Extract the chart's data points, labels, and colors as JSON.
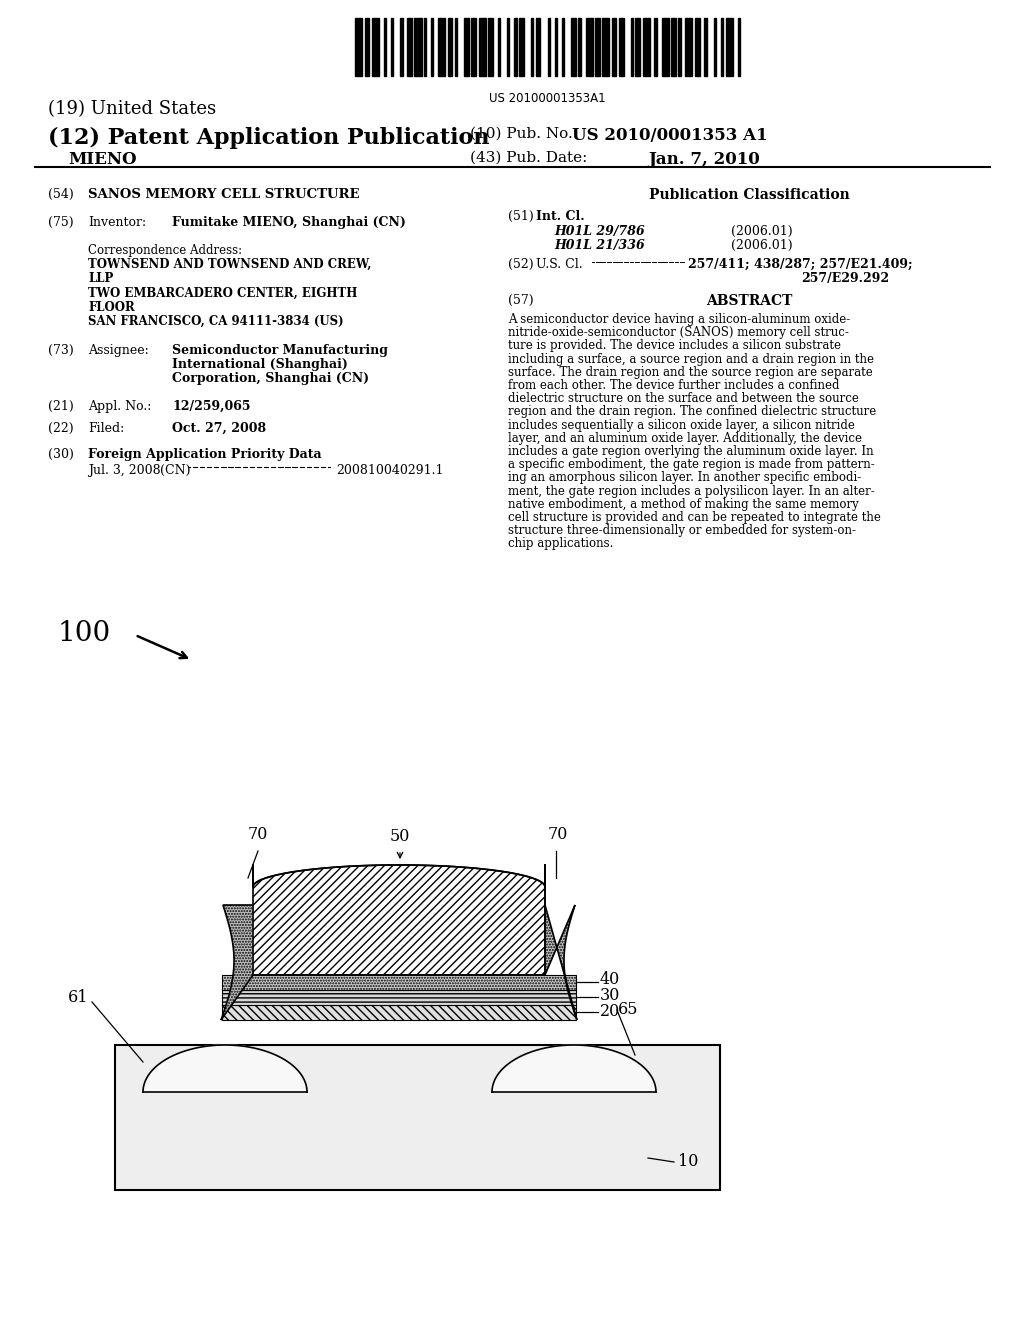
{
  "bg_color": "#ffffff",
  "barcode_text": "US 20100001353A1",
  "line19": "(19) United States",
  "line12": "(12) Patent Application Publication",
  "pub_no_label": "(10) Pub. No.:",
  "pub_no": "US 2010/0001353 A1",
  "inventor_name": "MIENO",
  "pub_date_label": "(43) Pub. Date:",
  "pub_date": "Jan. 7, 2010",
  "title_num": "(54)",
  "title": "SANOS MEMORY CELL STRUCTURE",
  "pub_class_header": "Publication Classification",
  "int_cl_num": "(51)",
  "int_cl_label": "Int. Cl.",
  "int_cl_1": "H01L 29/786",
  "int_cl_1_year": "(2006.01)",
  "int_cl_2": "H01L 21/336",
  "int_cl_2_year": "(2006.01)",
  "us_cl_num": "(52)",
  "us_cl_label": "U.S. Cl.",
  "us_cl_dots": ".............",
  "us_cl_val1": "257/411; 438/287; 257/E21.409;",
  "us_cl_val2": "257/E29.292",
  "abstract_num": "(57)",
  "abstract_label": "ABSTRACT",
  "abstract_lines": [
    "A semiconductor device having a silicon-aluminum oxide-",
    "nitride-oxide-semiconductor (SANOS) memory cell struc-",
    "ture is provided. The device includes a silicon substrate",
    "including a surface, a source region and a drain region in the",
    "surface. The drain region and the source region are separate",
    "from each other. The device further includes a confined",
    "dielectric structure on the surface and between the source",
    "region and the drain region. The confined dielectric structure",
    "includes sequentially a silicon oxide layer, a silicon nitride",
    "layer, and an aluminum oxide layer. Additionally, the device",
    "includes a gate region overlying the aluminum oxide layer. In",
    "a specific embodiment, the gate region is made from pattern-",
    "ing an amorphous silicon layer. In another specific embodi-",
    "ment, the gate region includes a polysilicon layer. In an alter-",
    "native embodiment, a method of making the same memory",
    "cell structure is provided and can be repeated to integrate the",
    "structure three-dimensionally or embedded for system-on-",
    "chip applications."
  ],
  "inv_num": "(75)",
  "inv_label": "Inventor:",
  "inv_val": "Fumitake MIENO, Shanghai (CN)",
  "corr_label": "Correspondence Address:",
  "corr_line1": "TOWNSEND AND TOWNSEND AND CREW,",
  "corr_line2": "LLP",
  "corr_line3": "TWO EMBARCADERO CENTER, EIGHTH",
  "corr_line4": "FLOOR",
  "corr_line5": "SAN FRANCISCO, CA 94111-3834 (US)",
  "asgn_num": "(73)",
  "asgn_label": "Assignee:",
  "asgn_val1": "Semiconductor Manufacturing",
  "asgn_val2": "International (Shanghai)",
  "asgn_val3": "Corporation, Shanghai (CN)",
  "appl_num": "(21)",
  "appl_label": "Appl. No.:",
  "appl_val": "12/259,065",
  "filed_num": "(22)",
  "filed_label": "Filed:",
  "filed_val": "Oct. 27, 2008",
  "foreign_num": "(30)",
  "foreign_label": "Foreign Application Priority Data",
  "foreign_date": "Jul. 3, 2008",
  "foreign_cn": "(CN)",
  "foreign_app": "200810040291.1",
  "label_100": "100",
  "label_50": "50",
  "label_70": "70",
  "label_40": "40",
  "label_30": "30",
  "label_20": "20",
  "label_61": "61",
  "label_65": "65",
  "label_10": "10"
}
